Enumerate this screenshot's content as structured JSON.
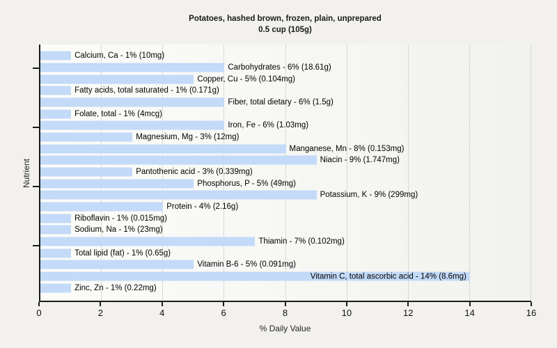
{
  "chart_data": {
    "type": "bar",
    "orientation": "horizontal",
    "title": "Potatoes, hashed brown, frozen, plain, unprepared",
    "subtitle": "0.5 cup (105g)",
    "xlabel": "% Daily Value",
    "ylabel": "Nutrient",
    "xlim": [
      0,
      16
    ],
    "xticks": [
      0,
      2,
      4,
      6,
      8,
      10,
      12,
      14,
      16
    ],
    "grid": "vertical-only",
    "legend": "none",
    "bar_color": "#c3daf8",
    "bars": [
      {
        "nutrient": "Calcium, Ca",
        "percent": 1,
        "amount": "10mg",
        "label": "Calcium, Ca - 1% (10mg)",
        "label_inside": false
      },
      {
        "nutrient": "Carbohydrates",
        "percent": 6,
        "amount": "18.61g",
        "label": "Carbohydrates - 6% (18.61g)",
        "label_inside": false
      },
      {
        "nutrient": "Copper, Cu",
        "percent": 5,
        "amount": "0.104mg",
        "label": "Copper, Cu - 5% (0.104mg)",
        "label_inside": false
      },
      {
        "nutrient": "Fatty acids, total saturated",
        "percent": 1,
        "amount": "0.171g",
        "label": "Fatty acids, total saturated - 1% (0.171g)",
        "label_inside": false
      },
      {
        "nutrient": "Fiber, total dietary",
        "percent": 6,
        "amount": "1.5g",
        "label": "Fiber, total dietary - 6% (1.5g)",
        "label_inside": false
      },
      {
        "nutrient": "Folate, total",
        "percent": 1,
        "amount": "4mcg",
        "label": "Folate, total - 1% (4mcg)",
        "label_inside": false
      },
      {
        "nutrient": "Iron, Fe",
        "percent": 6,
        "amount": "1.03mg",
        "label": "Iron, Fe - 6% (1.03mg)",
        "label_inside": false
      },
      {
        "nutrient": "Magnesium, Mg",
        "percent": 3,
        "amount": "12mg",
        "label": "Magnesium, Mg - 3% (12mg)",
        "label_inside": false
      },
      {
        "nutrient": "Manganese, Mn",
        "percent": 8,
        "amount": "0.153mg",
        "label": "Manganese, Mn - 8% (0.153mg)",
        "label_inside": false
      },
      {
        "nutrient": "Niacin",
        "percent": 9,
        "amount": "1.747mg",
        "label": "Niacin - 9% (1.747mg)",
        "label_inside": false
      },
      {
        "nutrient": "Pantothenic acid",
        "percent": 3,
        "amount": "0.339mg",
        "label": "Pantothenic acid - 3% (0.339mg)",
        "label_inside": false
      },
      {
        "nutrient": "Phosphorus, P",
        "percent": 5,
        "amount": "49mg",
        "label": "Phosphorus, P - 5% (49mg)",
        "label_inside": false
      },
      {
        "nutrient": "Potassium, K",
        "percent": 9,
        "amount": "299mg",
        "label": "Potassium, K - 9% (299mg)",
        "label_inside": false
      },
      {
        "nutrient": "Protein",
        "percent": 4,
        "amount": "2.16g",
        "label": "Protein - 4% (2.16g)",
        "label_inside": false
      },
      {
        "nutrient": "Riboflavin",
        "percent": 1,
        "amount": "0.015mg",
        "label": "Riboflavin - 1% (0.015mg)",
        "label_inside": false
      },
      {
        "nutrient": "Sodium, Na",
        "percent": 1,
        "amount": "23mg",
        "label": "Sodium, Na - 1% (23mg)",
        "label_inside": false
      },
      {
        "nutrient": "Thiamin",
        "percent": 7,
        "amount": "0.102mg",
        "label": "Thiamin - 7% (0.102mg)",
        "label_inside": false
      },
      {
        "nutrient": "Total lipid (fat)",
        "percent": 1,
        "amount": "0.65g",
        "label": "Total lipid (fat) - 1% (0.65g)",
        "label_inside": false
      },
      {
        "nutrient": "Vitamin B-6",
        "percent": 5,
        "amount": "0.091mg",
        "label": "Vitamin B-6 - 5% (0.091mg)",
        "label_inside": false
      },
      {
        "nutrient": "Vitamin C, total ascorbic acid",
        "percent": 14,
        "amount": "8.6mg",
        "label": "Vitamin C, total ascorbic acid - 14% (8.6mg)",
        "label_inside": true
      },
      {
        "nutrient": "Zinc, Zn",
        "percent": 1,
        "amount": "0.22mg",
        "label": "Zinc, Zn - 1% (0.22mg)",
        "label_inside": false
      }
    ]
  }
}
